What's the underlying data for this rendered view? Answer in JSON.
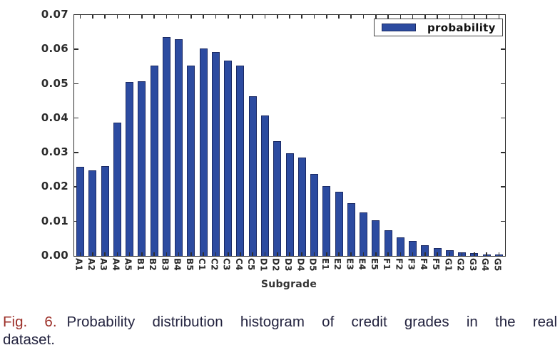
{
  "caption": {
    "fig_label": "Fig. 6.",
    "line1": "Probability distribution histogram of credit grades in the real",
    "line2": "dataset."
  },
  "chart_data": {
    "type": "bar",
    "title": "",
    "xlabel": "Subgrade",
    "ylabel": "",
    "grid": false,
    "legend_position": "upper right",
    "ylim": [
      0,
      0.07
    ],
    "ytick_labels": [
      "0.00",
      "0.01",
      "0.02",
      "0.03",
      "0.04",
      "0.05",
      "0.06",
      "0.07"
    ],
    "categories": [
      "A1",
      "A2",
      "A3",
      "A4",
      "A5",
      "B1",
      "B2",
      "B3",
      "B4",
      "B5",
      "C1",
      "C2",
      "C3",
      "C4",
      "C5",
      "D1",
      "D2",
      "D3",
      "D4",
      "D5",
      "E1",
      "E2",
      "E3",
      "E4",
      "E5",
      "F1",
      "F2",
      "F3",
      "F4",
      "F5",
      "G1",
      "G2",
      "G3",
      "G4",
      "G5"
    ],
    "series": [
      {
        "name": "probability",
        "values": [
          0.0258,
          0.0248,
          0.0262,
          0.0388,
          0.0506,
          0.0508,
          0.0552,
          0.0635,
          0.0629,
          0.0553,
          0.0603,
          0.0592,
          0.0567,
          0.0553,
          0.0464,
          0.0409,
          0.0333,
          0.0298,
          0.0285,
          0.0238,
          0.0203,
          0.0186,
          0.0153,
          0.0126,
          0.0103,
          0.0075,
          0.0054,
          0.0044,
          0.0032,
          0.0023,
          0.0016,
          0.0011,
          0.0008,
          0.0005,
          0.0004
        ]
      }
    ],
    "colors": {
      "bar_fill": "#2c4ba0",
      "bar_edge": "#1b2a64",
      "axis": "#2e2e2e",
      "text": "#2b2b2b",
      "legend_border": "#444444",
      "caption_fig_label": "#9c2f28",
      "caption_text": "#23233f"
    }
  }
}
